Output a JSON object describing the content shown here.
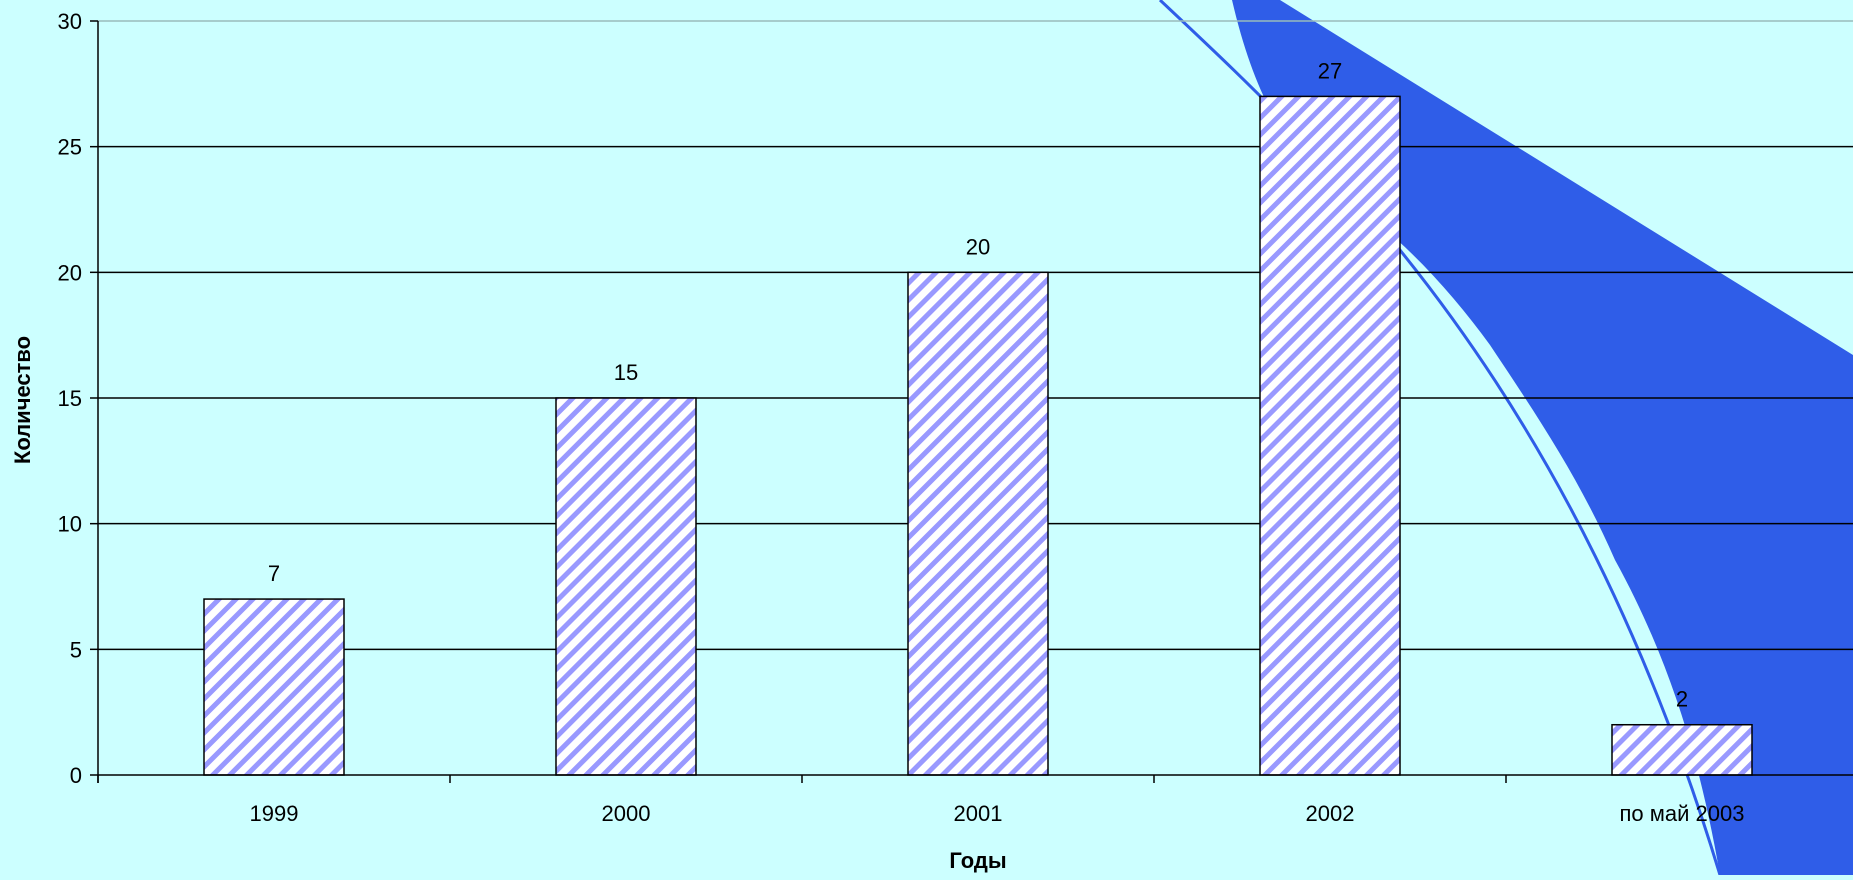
{
  "colors": {
    "background": "#ccffff",
    "bar_stroke": "#000000",
    "hatch_fill": "#ffffff",
    "hatch_line": "#9999ff",
    "gridline": "#000000",
    "swoosh": "#2f5de8"
  },
  "chart_data": {
    "type": "bar",
    "title": "",
    "xlabel": "Годы",
    "ylabel": "Количество",
    "categories": [
      "1999",
      "2000",
      "2001",
      "2002",
      "по май 2003"
    ],
    "series": [
      {
        "values": [
          7,
          15,
          20,
          27,
          2
        ]
      }
    ],
    "ylim": [
      0,
      30
    ],
    "yticks": [
      0,
      5,
      10,
      15,
      20,
      25,
      30
    ],
    "data_labels": [
      "7",
      "15",
      "20",
      "27",
      "2"
    ],
    "grid": true,
    "legend": "none",
    "bar_pattern": "diagonal hatch"
  }
}
